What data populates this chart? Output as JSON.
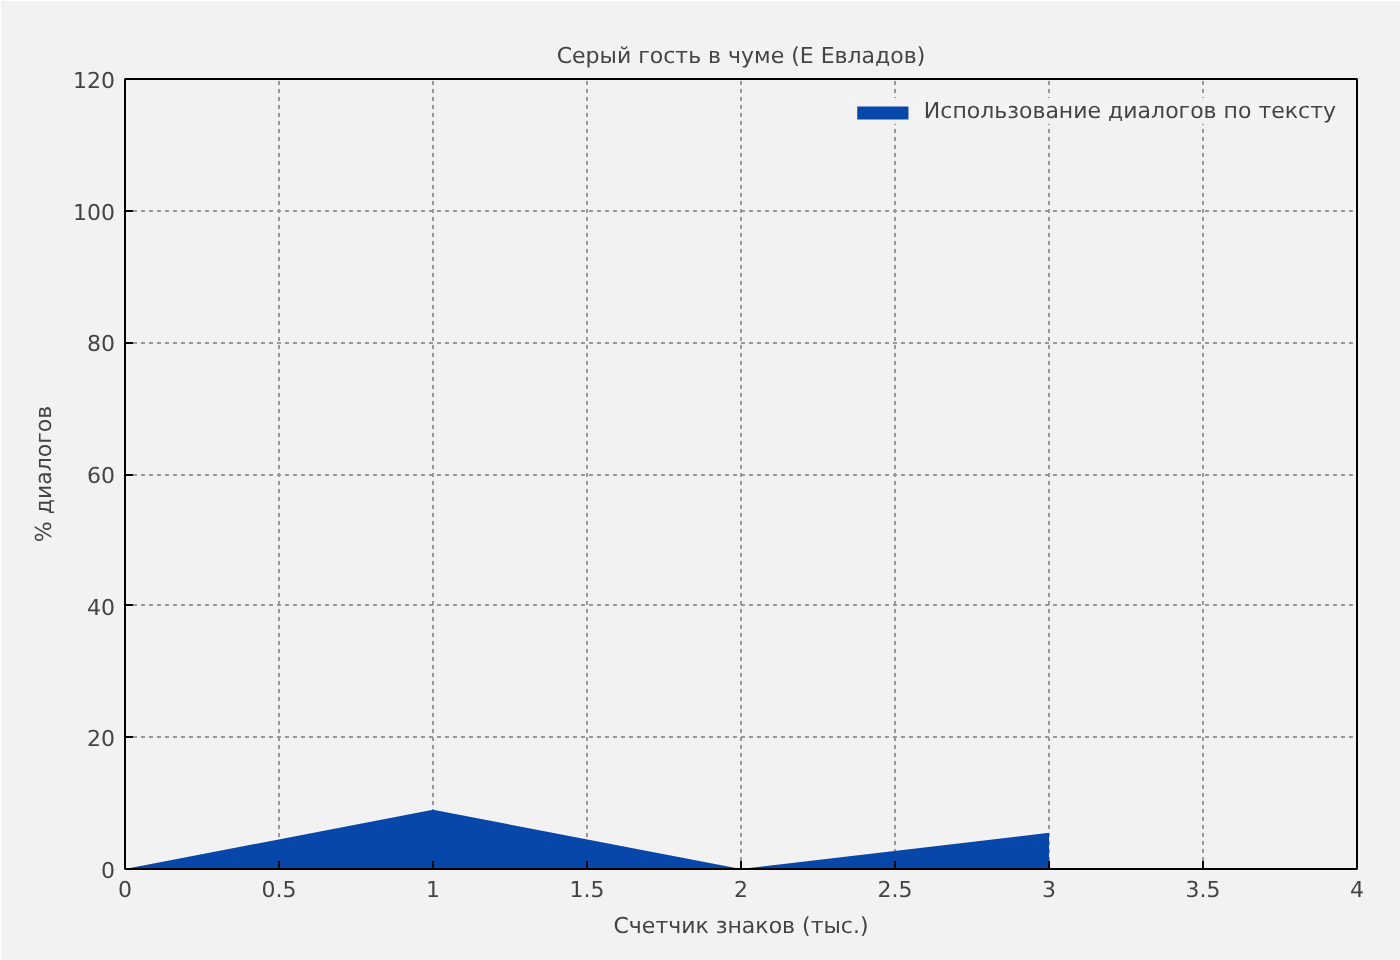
{
  "chart_data": {
    "type": "area",
    "title": "Серый гость в чуме (Е Евладов)",
    "xlabel": "Счетчик знаков (тыс.)",
    "ylabel": "% диалогов",
    "x": [
      0,
      1,
      2,
      3
    ],
    "series": [
      {
        "name": "Использование диалогов по тексту",
        "color": "#0847aa",
        "values": [
          0,
          9,
          0,
          5.5
        ]
      }
    ],
    "xlim": [
      0,
      4
    ],
    "xticks": [
      0,
      0.5,
      1,
      1.5,
      2,
      2.5,
      3,
      3.5,
      4
    ],
    "ylim": [
      0,
      120
    ],
    "yticks": [
      0,
      20,
      40,
      60,
      80,
      100,
      120
    ],
    "grid": true,
    "legend": "top right"
  }
}
